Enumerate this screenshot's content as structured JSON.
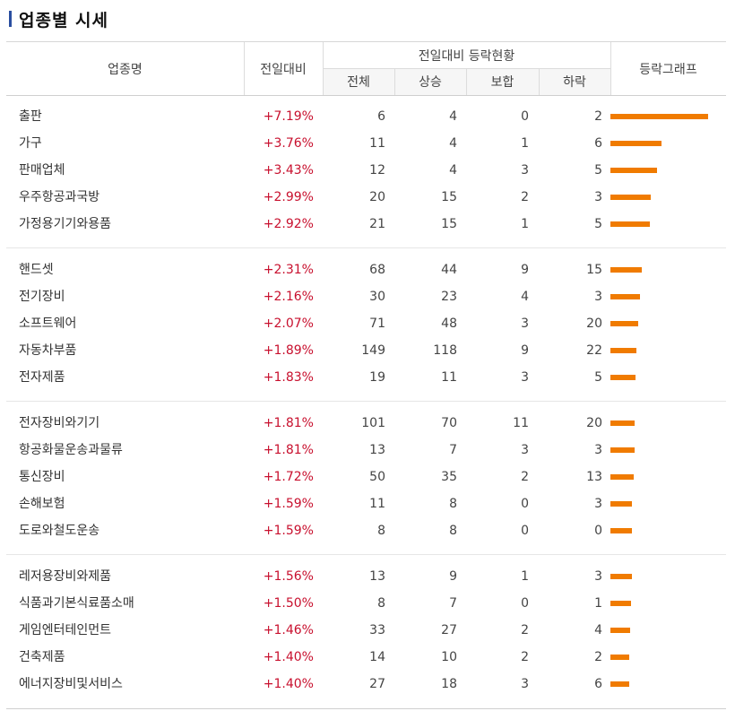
{
  "title": "업종별 시세",
  "accent_color": "#2a4fa0",
  "up_color": "#c8102e",
  "bar_color": "#f07b00",
  "headers": {
    "sector": "업종명",
    "change": "전일대비",
    "group": "전일대비 등락현황",
    "total": "전체",
    "up": "상승",
    "flat": "보합",
    "down": "하락",
    "graph": "등락그래프"
  },
  "rows": [
    {
      "name": "출판",
      "change": "+7.19%",
      "pct": 7.19,
      "total": "6",
      "up": "4",
      "flat": "0",
      "down": "2"
    },
    {
      "name": "가구",
      "change": "+3.76%",
      "pct": 3.76,
      "total": "11",
      "up": "4",
      "flat": "1",
      "down": "6"
    },
    {
      "name": "판매업체",
      "change": "+3.43%",
      "pct": 3.43,
      "total": "12",
      "up": "4",
      "flat": "3",
      "down": "5"
    },
    {
      "name": "우주항공과국방",
      "change": "+2.99%",
      "pct": 2.99,
      "total": "20",
      "up": "15",
      "flat": "2",
      "down": "3"
    },
    {
      "name": "가정용기기와용품",
      "change": "+2.92%",
      "pct": 2.92,
      "total": "21",
      "up": "15",
      "flat": "1",
      "down": "5"
    },
    {
      "name": "핸드셋",
      "change": "+2.31%",
      "pct": 2.31,
      "total": "68",
      "up": "44",
      "flat": "9",
      "down": "15"
    },
    {
      "name": "전기장비",
      "change": "+2.16%",
      "pct": 2.16,
      "total": "30",
      "up": "23",
      "flat": "4",
      "down": "3"
    },
    {
      "name": "소프트웨어",
      "change": "+2.07%",
      "pct": 2.07,
      "total": "71",
      "up": "48",
      "flat": "3",
      "down": "20"
    },
    {
      "name": "자동차부품",
      "change": "+1.89%",
      "pct": 1.89,
      "total": "149",
      "up": "118",
      "flat": "9",
      "down": "22"
    },
    {
      "name": "전자제품",
      "change": "+1.83%",
      "pct": 1.83,
      "total": "19",
      "up": "11",
      "flat": "3",
      "down": "5"
    },
    {
      "name": "전자장비와기기",
      "change": "+1.81%",
      "pct": 1.81,
      "total": "101",
      "up": "70",
      "flat": "11",
      "down": "20"
    },
    {
      "name": "항공화물운송과물류",
      "change": "+1.81%",
      "pct": 1.81,
      "total": "13",
      "up": "7",
      "flat": "3",
      "down": "3"
    },
    {
      "name": "통신장비",
      "change": "+1.72%",
      "pct": 1.72,
      "total": "50",
      "up": "35",
      "flat": "2",
      "down": "13"
    },
    {
      "name": "손해보험",
      "change": "+1.59%",
      "pct": 1.59,
      "total": "11",
      "up": "8",
      "flat": "0",
      "down": "3"
    },
    {
      "name": "도로와철도운송",
      "change": "+1.59%",
      "pct": 1.59,
      "total": "8",
      "up": "8",
      "flat": "0",
      "down": "0"
    },
    {
      "name": "레저용장비와제품",
      "change": "+1.56%",
      "pct": 1.56,
      "total": "13",
      "up": "9",
      "flat": "1",
      "down": "3"
    },
    {
      "name": "식품과기본식료품소매",
      "change": "+1.50%",
      "pct": 1.5,
      "total": "8",
      "up": "7",
      "flat": "0",
      "down": "1"
    },
    {
      "name": "게임엔터테인먼트",
      "change": "+1.46%",
      "pct": 1.46,
      "total": "33",
      "up": "27",
      "flat": "2",
      "down": "4"
    },
    {
      "name": "건축제품",
      "change": "+1.40%",
      "pct": 1.4,
      "total": "14",
      "up": "10",
      "flat": "2",
      "down": "2"
    },
    {
      "name": "에너지장비및서비스",
      "change": "+1.40%",
      "pct": 1.4,
      "total": "27",
      "up": "18",
      "flat": "3",
      "down": "6"
    }
  ]
}
